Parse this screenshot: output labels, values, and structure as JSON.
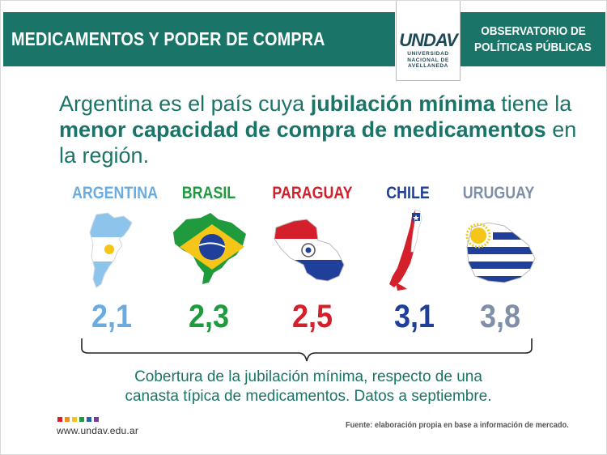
{
  "header": {
    "title": "MEDICAMENTOS Y PODER DE COMPRA",
    "observatory_line1": "OBSERVATORIO DE",
    "observatory_line2": "POLÍTICAS PÚBLICAS",
    "logo_mark": "UNDAV",
    "logo_line1": "UNIVERSIDAD",
    "logo_line2": "NACIONAL DE",
    "logo_line3": "AVELLANEDA"
  },
  "headline": {
    "part1": "Argentina es el país cuya ",
    "bold1": "jubilación mínima",
    "part2": " tiene la ",
    "bold2": "menor capacidad de compra de medicamentos",
    "part3": " en la región."
  },
  "countries": [
    {
      "name": "ARGENTINA",
      "value": "2,1",
      "color": "#6aace0"
    },
    {
      "name": "BRASIL",
      "value": "2,3",
      "color": "#1f9a3c"
    },
    {
      "name": "PARAGUAY",
      "value": "2,5",
      "color": "#d4202a"
    },
    {
      "name": "CHILE",
      "value": "3,1",
      "color": "#1f3f9a"
    },
    {
      "name": "URUGUAY",
      "value": "3,8",
      "color": "#7f8fa8"
    }
  ],
  "caption": {
    "line1": "Cobertura de la jubilación mínima, respecto de una",
    "line2": "canasta típica de medicamentos. Datos a septiembre."
  },
  "footer": {
    "url": "www.undav.edu.ar",
    "source": "Fuente: elaboración propia en base a información de mercado.",
    "dot_colors": [
      "#d4202a",
      "#f28c1a",
      "#f5c518",
      "#1f9a3c",
      "#1f63b5",
      "#7a3a9a"
    ]
  }
}
